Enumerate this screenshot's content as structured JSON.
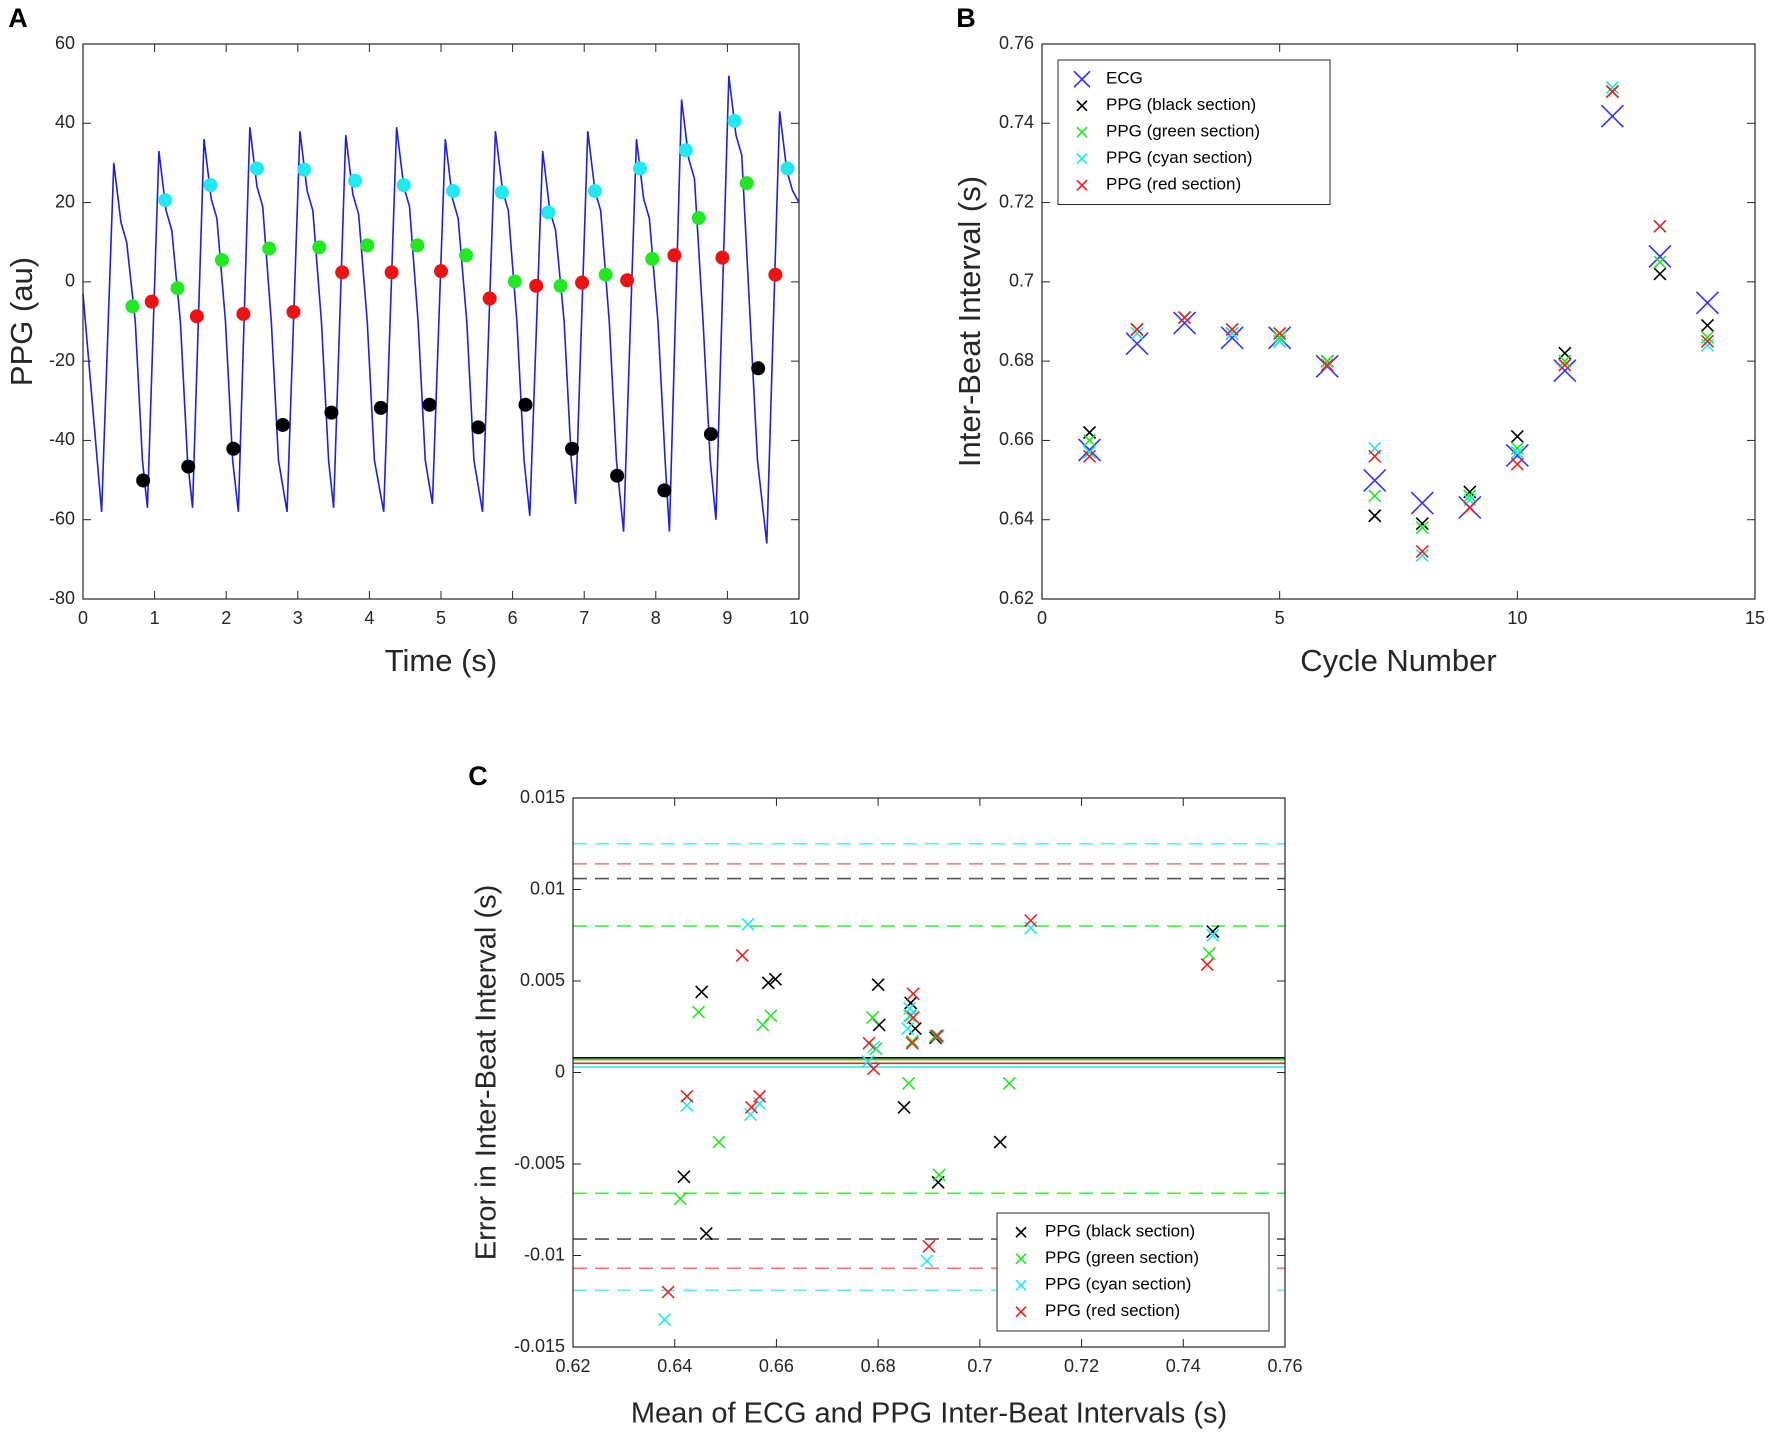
{
  "chart_data": [
    {
      "type": "line",
      "panel_label": "A",
      "x_label": "Time (s)",
      "y_label": "PPG (au)",
      "xlim": [
        0,
        10
      ],
      "xticks": [
        0,
        1,
        2,
        3,
        4,
        5,
        6,
        7,
        8,
        9,
        10
      ],
      "ylim": [
        -80,
        60
      ],
      "yticks": [
        -80,
        -60,
        -40,
        -20,
        0,
        20,
        40,
        60
      ],
      "series": [
        {
          "type": "line",
          "color": "#2020d8",
          "x": [
            0,
            0.26,
            0.43,
            0.53,
            0.61,
            0.73,
            0.83,
            0.9,
            1.06,
            1.16,
            1.24,
            1.36,
            1.46,
            1.53,
            1.69,
            1.79,
            1.87,
            1.99,
            2.09,
            2.17,
            2.33,
            2.43,
            2.51,
            2.63,
            2.73,
            2.85,
            3.03,
            3.13,
            3.21,
            3.33,
            3.43,
            3.5,
            3.67,
            3.77,
            3.85,
            3.97,
            4.07,
            4.2,
            4.38,
            4.48,
            4.56,
            4.68,
            4.78,
            4.88,
            5.06,
            5.16,
            5.24,
            5.36,
            5.46,
            5.58,
            5.76,
            5.86,
            5.94,
            6.06,
            6.16,
            6.24,
            6.42,
            6.52,
            6.6,
            6.72,
            6.82,
            6.88,
            7.05,
            7.15,
            7.23,
            7.35,
            7.45,
            7.55,
            7.73,
            7.83,
            7.91,
            8.03,
            8.13,
            8.19,
            8.36,
            8.46,
            8.54,
            8.66,
            8.76,
            8.84,
            9.02,
            9.12,
            9.2,
            9.32,
            9.42,
            9.55,
            9.73,
            9.83,
            9.91,
            10
          ],
          "values": [
            -3,
            -58,
            30,
            15,
            10,
            -10,
            -45,
            -57,
            33,
            18,
            13,
            -10,
            -45,
            -57,
            36,
            21,
            16,
            -10,
            -45,
            -58,
            39,
            24,
            19,
            -10,
            -45,
            -58,
            38,
            23,
            18,
            -10,
            -45,
            -57,
            37,
            22,
            17,
            -10,
            -45,
            -58,
            39,
            24,
            19,
            -10,
            -45,
            -56,
            36,
            21,
            16,
            -10,
            -45,
            -58,
            38,
            23,
            18,
            -10,
            -45,
            -59,
            33,
            18,
            13,
            -10,
            -45,
            -56,
            38,
            23,
            18,
            -10,
            -45,
            -63,
            36,
            21,
            16,
            -10,
            -45,
            -63,
            46,
            31,
            26,
            -10,
            -45,
            -60,
            52,
            37,
            32,
            -10,
            -45,
            -66,
            43,
            28,
            23,
            20
          ]
        },
        {
          "type": "dot",
          "color": "#22e8f0",
          "x": [
            1.15,
            1.78,
            2.43,
            3.09,
            3.8,
            4.48,
            5.17,
            5.85,
            6.5,
            7.15,
            7.78,
            8.42,
            9.1,
            9.84
          ],
          "values": [
            20.6,
            24.4,
            28.6,
            28.3,
            25.5,
            24.4,
            22.9,
            22.6,
            17.5,
            22.9,
            28.6,
            33.2,
            40.6,
            28.6
          ]
        },
        {
          "type": "dot",
          "color": "#22e822",
          "x": [
            0.69,
            1.32,
            1.94,
            2.6,
            3.3,
            3.97,
            4.67,
            5.35,
            6.03,
            6.67,
            7.3,
            7.95,
            8.6,
            9.27
          ],
          "values": [
            -6.2,
            -1.6,
            5.5,
            8.4,
            8.7,
            9.2,
            9.2,
            6.7,
            0.1,
            -1.0,
            1.8,
            5.8,
            16.1,
            24.9
          ]
        },
        {
          "type": "dot",
          "color": "#ee1111",
          "x": [
            0.96,
            1.59,
            2.24,
            2.94,
            3.62,
            4.31,
            5.0,
            5.68,
            6.33,
            6.97,
            7.6,
            8.26,
            8.93,
            9.67
          ],
          "values": [
            -5.0,
            -8.7,
            -8.1,
            -7.6,
            2.4,
            2.4,
            2.7,
            -4.2,
            -1.0,
            -0.2,
            0.4,
            6.7,
            6.1,
            1.8
          ]
        },
        {
          "type": "dot",
          "color": "#000000",
          "x": [
            0.84,
            1.47,
            2.1,
            2.79,
            3.47,
            4.16,
            4.84,
            5.52,
            6.18,
            6.83,
            7.46,
            8.12,
            8.77,
            9.43
          ],
          "values": [
            -50.1,
            -46.6,
            -42.1,
            -36.1,
            -33.0,
            -31.8,
            -31.0,
            -36.7,
            -31.0,
            -42.1,
            -48.9,
            -52.6,
            -38.4,
            -21.8
          ]
        }
      ]
    },
    {
      "type": "scatter",
      "panel_label": "B",
      "x_label": "Cycle Number",
      "y_label": "Inter-Beat Interval (s)",
      "xlim": [
        0,
        15
      ],
      "xticks": [
        0,
        5,
        10,
        15
      ],
      "ylim": [
        0.62,
        0.76
      ],
      "yticks": [
        0.62,
        0.64,
        0.66,
        0.68,
        0.7,
        0.72,
        0.74,
        0.76
      ],
      "legend": "upper left",
      "x": [
        1,
        2,
        3,
        4,
        5,
        6,
        7,
        8,
        9,
        10,
        11,
        12,
        13,
        14
      ],
      "series": [
        {
          "name": "ECG",
          "marker": "large-x",
          "color": "#3333ff",
          "values": [
            0.6576,
            0.6844,
            0.6896,
            0.6859,
            0.6859,
            0.6787,
            0.6499,
            0.6442,
            0.6431,
            0.6562,
            0.6776,
            0.7418,
            0.7064,
            0.6947
          ]
        },
        {
          "name": "PPG (black section)",
          "marker": "x",
          "color": "#000000",
          "values": [
            0.662,
            0.688,
            0.691,
            0.687,
            0.685,
            0.68,
            0.641,
            0.639,
            0.647,
            0.661,
            0.682,
            0.748,
            0.702,
            0.689
          ]
        },
        {
          "name": "PPG (green section)",
          "marker": "x",
          "color": "#22e822",
          "values": [
            0.66,
            0.688,
            0.691,
            0.688,
            0.686,
            0.68,
            0.646,
            0.638,
            0.646,
            0.658,
            0.68,
            0.749,
            0.705,
            0.686
          ]
        },
        {
          "name": "PPG (cyan section)",
          "marker": "x",
          "color": "#22e8f0",
          "values": [
            0.657,
            0.687,
            0.691,
            0.687,
            0.685,
            0.679,
            0.658,
            0.631,
            0.645,
            0.657,
            0.679,
            0.749,
            0.714,
            0.684
          ]
        },
        {
          "name": "PPG (red section)",
          "marker": "x",
          "color": "#ee2222",
          "values": [
            0.656,
            0.688,
            0.691,
            0.688,
            0.687,
            0.679,
            0.656,
            0.632,
            0.643,
            0.654,
            0.679,
            0.748,
            0.714,
            0.685
          ]
        }
      ]
    },
    {
      "type": "scatter",
      "panel_label": "C",
      "x_label": "Mean of ECG and PPG Inter-Beat Intervals (s)",
      "y_label": "Error in Inter-Beat Interval (s)",
      "xlim": [
        0.62,
        0.76
      ],
      "xticks": [
        0.62,
        0.64,
        0.66,
        0.68,
        0.7,
        0.72,
        0.74,
        0.76
      ],
      "ylim": [
        -0.015,
        0.015
      ],
      "yticks": [
        -0.015,
        -0.01,
        -0.005,
        0,
        0.005,
        0.01,
        0.015
      ],
      "legend": "lower right",
      "hlines": [
        {
          "value": 0.0125,
          "color": "#55eef5",
          "style": "dashed"
        },
        {
          "value": 0.0114,
          "color": "#f57070",
          "style": "dashed"
        },
        {
          "value": 0.0106,
          "color": "#555555",
          "style": "dashed"
        },
        {
          "value": 0.008,
          "color": "#44ee44",
          "style": "dashed"
        },
        {
          "value": 0.0008,
          "color": "#000000",
          "style": "solid"
        },
        {
          "value": 0.0007,
          "color": "#22e822",
          "style": "solid"
        },
        {
          "value": 0.0005,
          "color": "#ee2222",
          "style": "solid"
        },
        {
          "value": 0.0003,
          "color": "#22e8f0",
          "style": "solid"
        },
        {
          "value": -0.0066,
          "color": "#44ee44",
          "style": "dashed"
        },
        {
          "value": -0.0091,
          "color": "#555555",
          "style": "dashed"
        },
        {
          "value": -0.0107,
          "color": "#f57070",
          "style": "dashed"
        },
        {
          "value": -0.0119,
          "color": "#55eef5",
          "style": "dashed"
        }
      ],
      "series": [
        {
          "name": "PPG (black section)",
          "marker": "x",
          "color": "#000000",
          "x": [
            0.6453,
            0.6418,
            0.6462,
            0.6584,
            0.6598,
            0.68,
            0.6802,
            0.6864,
            0.6873,
            0.6851,
            0.6913,
            0.6918,
            0.704,
            0.7458
          ],
          "values": [
            0.0044,
            -0.0057,
            -0.0088,
            0.0049,
            0.0051,
            0.0048,
            0.0026,
            0.0038,
            0.0024,
            -0.0019,
            0.0019,
            -0.006,
            -0.0038,
            0.0077
          ]
        },
        {
          "name": "PPG (green section)",
          "marker": "x",
          "color": "#22e822",
          "x": [
            0.6447,
            0.6411,
            0.6487,
            0.6573,
            0.6589,
            0.6789,
            0.6796,
            0.686,
            0.6862,
            0.6867,
            0.6913,
            0.692,
            0.7058,
            0.7451
          ],
          "values": [
            0.0033,
            -0.0069,
            -0.0038,
            0.0026,
            0.0031,
            0.003,
            0.0013,
            -0.0006,
            0.0031,
            0.0017,
            0.002,
            -0.0056,
            -0.0006,
            0.0065
          ]
        },
        {
          "name": "PPG (cyan section)",
          "marker": "x",
          "color": "#22e8f0",
          "x": [
            0.638,
            0.6424,
            0.6544,
            0.6549,
            0.6567,
            0.678,
            0.6862,
            0.6864,
            0.6896,
            0.71,
            0.7458,
            0.6791,
            0.6858,
            0.6918
          ],
          "values": [
            -0.0135,
            -0.0018,
            0.0081,
            -0.0023,
            -0.0017,
            0.0006,
            0.0035,
            0.0031,
            -0.0103,
            0.0079,
            0.0075,
            0.0014,
            0.0024,
            0.002
          ]
        },
        {
          "name": "PPG (red section)",
          "marker": "x",
          "color": "#ee2222",
          "x": [
            0.6387,
            0.6424,
            0.6533,
            0.6551,
            0.6567,
            0.6782,
            0.6791,
            0.6869,
            0.6867,
            0.69,
            0.71,
            0.7447,
            0.6869,
            0.6916
          ],
          "values": [
            -0.012,
            -0.0013,
            0.0064,
            -0.0019,
            -0.0013,
            0.0016,
            0.0002,
            0.0043,
            0.0016,
            -0.0095,
            0.0083,
            0.0059,
            0.003,
            0.002
          ]
        }
      ]
    }
  ]
}
